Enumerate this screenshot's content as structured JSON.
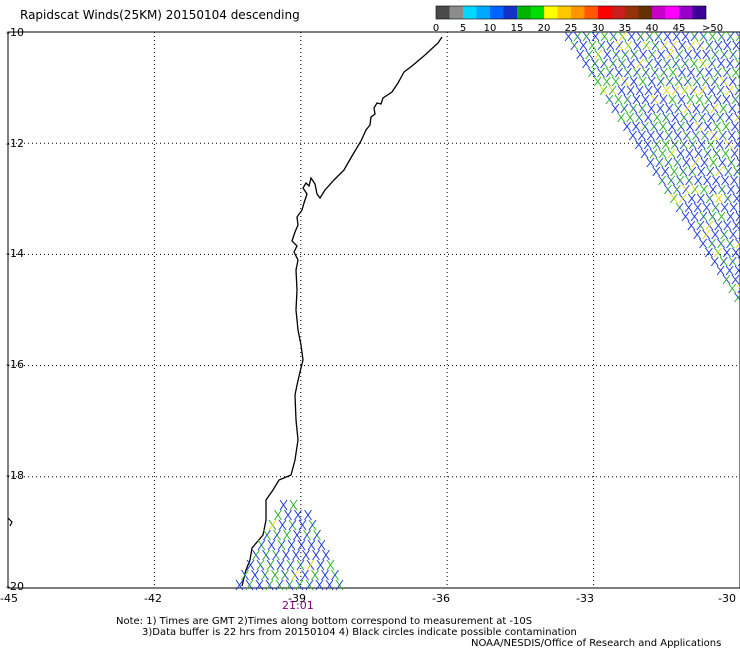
{
  "title": "Rapidscat Winds(25KM) 20150104 descending",
  "colorbar": {
    "swatches": [
      "#4a4a4a",
      "#8c8c8c",
      "#00d8ff",
      "#00a8ff",
      "#0064ff",
      "#1432c8",
      "#00b400",
      "#00dc00",
      "#ffff00",
      "#ffc800",
      "#ff9600",
      "#ff5a00",
      "#ff0000",
      "#c81e1e",
      "#96320a",
      "#643200",
      "#c800c8",
      "#ff00ff",
      "#9600c8",
      "#3c0096"
    ],
    "labels": [
      "0",
      "5",
      "10",
      "15",
      "20",
      "25",
      "30",
      "35",
      "40",
      "45",
      ">50 knots"
    ]
  },
  "axes": {
    "y_labels": [
      "-10",
      "-12",
      "-14",
      "-16",
      "-18",
      "-20"
    ],
    "x_labels": [
      "-45",
      "-42",
      "-39",
      "-36",
      "-33",
      "-30"
    ],
    "lon_range": [
      -45,
      -30
    ],
    "lat_range": [
      -20,
      -10
    ],
    "grid": "dotted"
  },
  "time_label": "21:01",
  "notes": {
    "line1": "Note: 1) Times are GMT 2)Times along bottom correspond to measurement at -10S",
    "line2": "3)Data buffer is 22 hrs from 20150104 4) Black circles indicate possible contamination",
    "line3": "NOAA/NESDIS/Office of Research and Applications"
  },
  "colors": {
    "barb_blue": "#1e3cdc",
    "barb_green": "#28b428",
    "barb_yellow": "#e6dc00",
    "coast": "#000000",
    "time": "#800080"
  }
}
